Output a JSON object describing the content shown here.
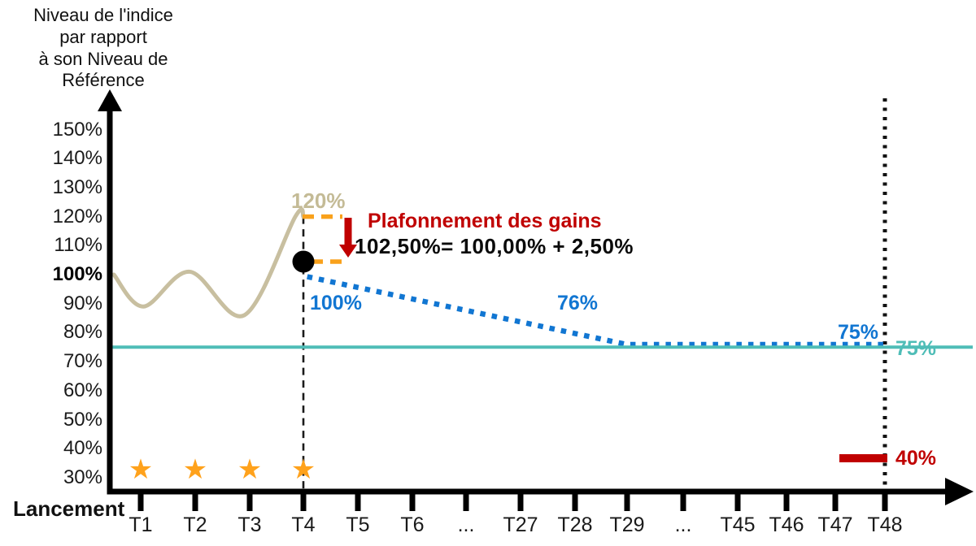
{
  "chart_data": {
    "type": "line",
    "y_axis": {
      "title": "Niveau de l'indice\npar rapport\nà son Niveau de\nRéférence",
      "range": [
        30,
        150
      ],
      "ticks": [
        {
          "label": "150%",
          "value": 150
        },
        {
          "label": "140%",
          "value": 140
        },
        {
          "label": "130%",
          "value": 130
        },
        {
          "label": "120%",
          "value": 120
        },
        {
          "label": "110%",
          "value": 110
        },
        {
          "label": "100%",
          "value": 100,
          "bold": true
        },
        {
          "label": "90%",
          "value": 90
        },
        {
          "label": "80%",
          "value": 80
        },
        {
          "label": "70%",
          "value": 70
        },
        {
          "label": "60%",
          "value": 60
        },
        {
          "label": "50%",
          "value": 50
        },
        {
          "label": "40%",
          "value": 40
        },
        {
          "label": "30%",
          "value": 30
        }
      ]
    },
    "x_axis": {
      "origin_label": "Lancement",
      "ticks": [
        {
          "label": "T1"
        },
        {
          "label": "T2"
        },
        {
          "label": "T3"
        },
        {
          "label": "T4"
        },
        {
          "label": "T5"
        },
        {
          "label": "T6"
        },
        {
          "label": "..."
        },
        {
          "label": "T27"
        },
        {
          "label": "T28"
        },
        {
          "label": "T29"
        },
        {
          "label": "..."
        },
        {
          "label": "T45"
        },
        {
          "label": "T46"
        },
        {
          "label": "T47"
        },
        {
          "label": "T48"
        }
      ]
    },
    "series": [
      {
        "name": "niveau-indice",
        "color": "#C8BFA0",
        "style": "solid",
        "points_t_v": [
          [
            0,
            100
          ],
          [
            1.05,
            89
          ],
          [
            1.9,
            101
          ],
          [
            2.9,
            86
          ],
          [
            3.85,
            120
          ],
          [
            4,
            120
          ]
        ]
      },
      {
        "name": "valeur-produit",
        "color": "#1176D2",
        "style": "dotted",
        "points_t_v": [
          [
            4.07,
            99.3
          ],
          [
            10,
            75.9
          ],
          [
            15,
            75.9
          ]
        ]
      },
      {
        "name": "barriere-75",
        "color": "#4FBDB7",
        "style": "solid",
        "full_width": true,
        "points_t_v": [
          [
            0,
            75
          ],
          [
            15,
            75
          ]
        ]
      }
    ],
    "markers": {
      "cap_dot": {
        "t": 4,
        "value": 102.5,
        "color": "#000000"
      },
      "stars": {
        "symbol": "★",
        "color": "#FFA21C",
        "t_positions": [
          1,
          2,
          3,
          4
        ]
      }
    },
    "guides": [
      {
        "t": 4,
        "line": "dashed"
      },
      {
        "t": 15,
        "line": "dotted"
      }
    ],
    "cap_dashes": {
      "color": "#F9A11B",
      "values": [
        120,
        102.5
      ]
    },
    "floor": {
      "value": 40,
      "color": "#C00000"
    },
    "annotations": {
      "cap_level": "120%",
      "cap_title": "Plafonnement des gains",
      "cap_formula": "102,50%= 100,00% + 2,50%",
      "initial_level": "100%",
      "decline_level": "76%",
      "final_level": "75%",
      "barrier_level": "75%",
      "floor_level": "40%"
    }
  },
  "colors": {
    "index_curve": "#C8BFA0",
    "product_line": "#1176D2",
    "barrier_line": "#4FBDB7",
    "cap_dash": "#F9A11B",
    "alert_red": "#C00000",
    "star": "#FFA21C",
    "axis": "#000000"
  }
}
